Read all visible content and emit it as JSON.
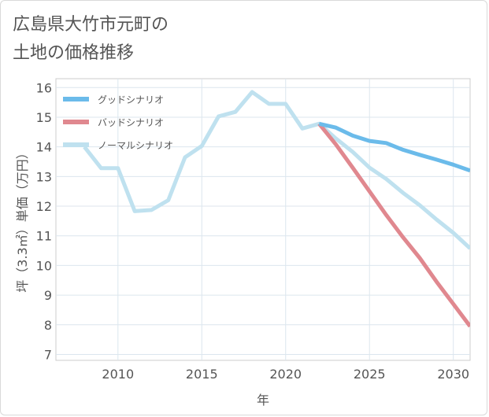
{
  "title_lines": [
    "広島県大竹市元町の",
    "土地の価格推移"
  ],
  "chart_data": {
    "type": "line",
    "title": "広島県大竹市元町の土地の価格推移",
    "xlabel": "年",
    "ylabel": "坪（3.3㎡）単価（万円）",
    "xlim": [
      2006.3,
      2031.0
    ],
    "ylim": [
      6.8,
      16.3
    ],
    "x_ticks": [
      2010,
      2015,
      2020,
      2025,
      2030
    ],
    "y_ticks": [
      7,
      8,
      9,
      10,
      11,
      12,
      13,
      14,
      15,
      16
    ],
    "legend_position": "top-left",
    "grid": true,
    "series": [
      {
        "name": "グッドシナリオ",
        "color": "#6bbbea",
        "x": [
          2022,
          2023,
          2024,
          2025,
          2026,
          2027,
          2028,
          2029,
          2030,
          2031
        ],
        "y": [
          14.78,
          14.65,
          14.38,
          14.2,
          14.13,
          13.9,
          13.73,
          13.57,
          13.4,
          13.2
        ]
      },
      {
        "name": "バッドシナリオ",
        "color": "#e0888f",
        "x": [
          2022,
          2023,
          2024,
          2025,
          2026,
          2027,
          2028,
          2029,
          2030,
          2031
        ],
        "y": [
          14.78,
          14.08,
          13.3,
          12.5,
          11.7,
          10.95,
          10.25,
          9.45,
          8.7,
          7.95
        ]
      },
      {
        "name": "ノーマルシナリオ",
        "color": "#bfe1ef",
        "x": [
          2008,
          2009,
          2010,
          2011,
          2012,
          2013,
          2014,
          2015,
          2016,
          2017,
          2018,
          2019,
          2020,
          2021,
          2022,
          2023,
          2024,
          2025,
          2026,
          2027,
          2028,
          2029,
          2030,
          2031
        ],
        "y": [
          14.0,
          13.28,
          13.28,
          11.83,
          11.87,
          12.2,
          13.65,
          14.03,
          15.03,
          15.18,
          15.85,
          15.45,
          15.45,
          14.62,
          14.78,
          14.28,
          13.83,
          13.3,
          12.92,
          12.45,
          12.03,
          11.55,
          11.1,
          10.58
        ]
      }
    ]
  }
}
